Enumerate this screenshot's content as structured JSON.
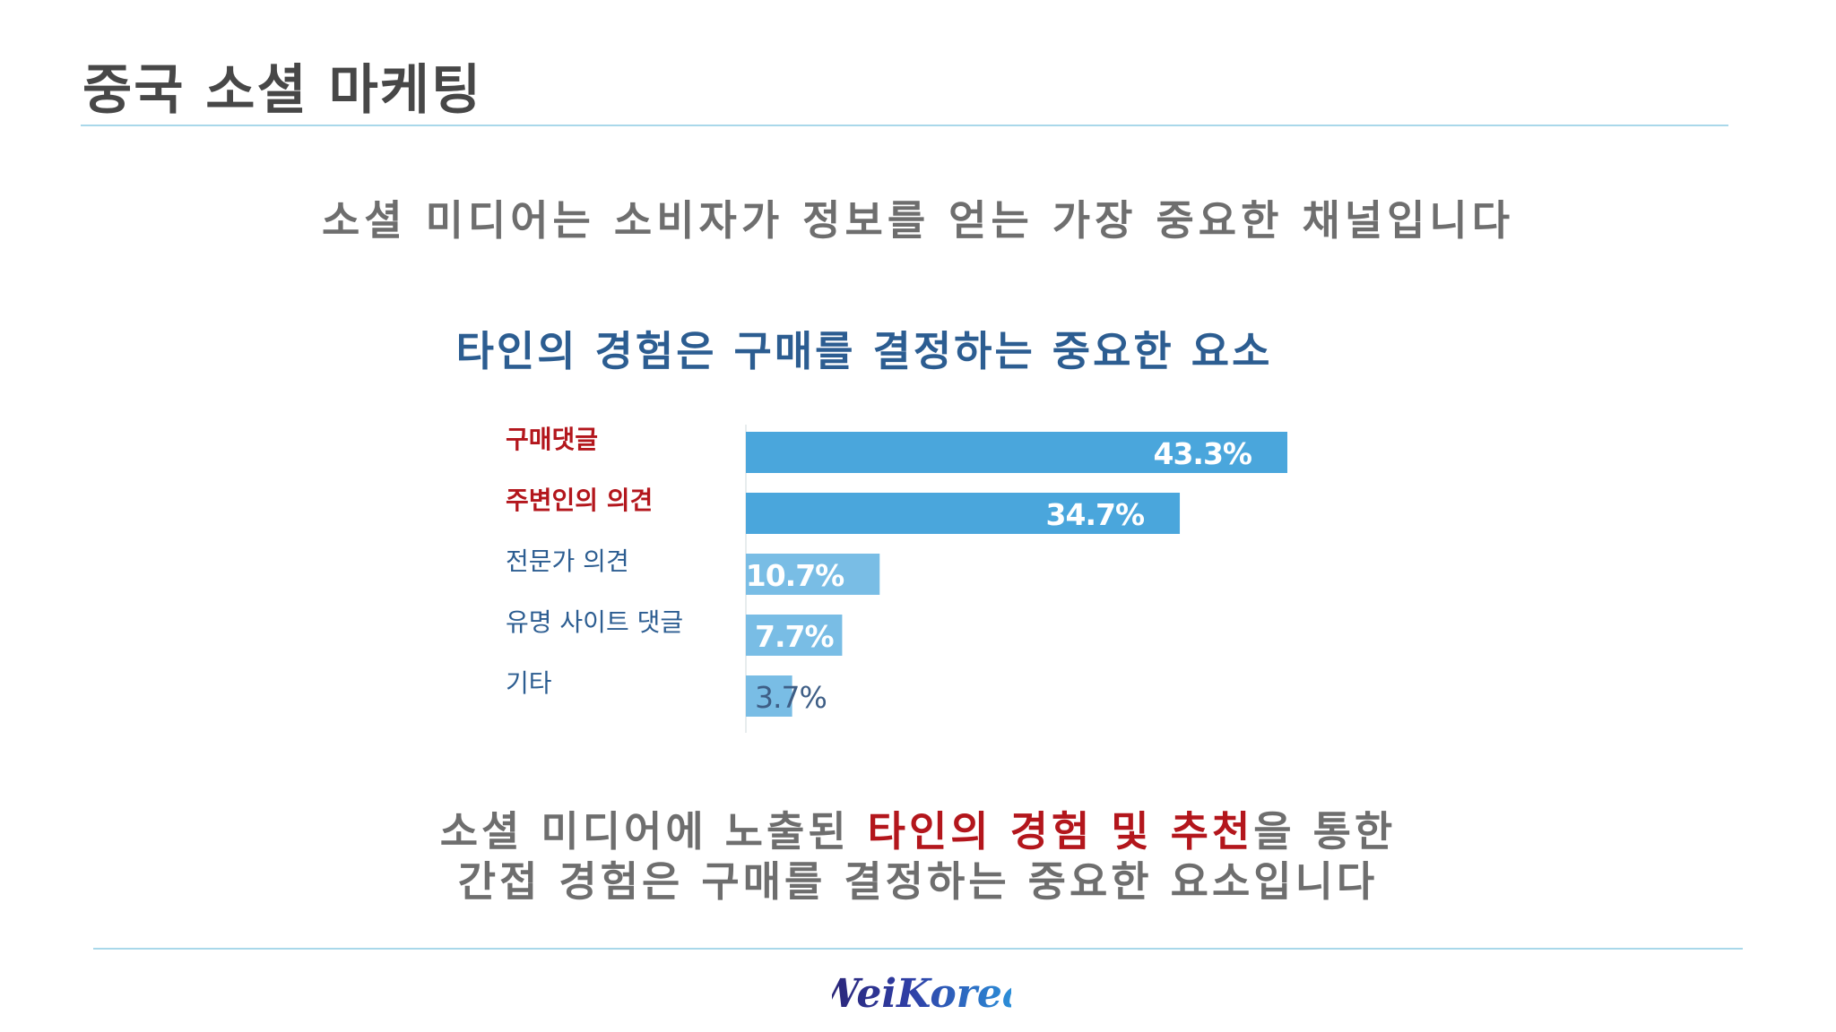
{
  "slide": {
    "title": "중국 소셜 마케팅",
    "subtitle": "소셜 미디어는 소비자가 정보를 얻는 가장 중요한 채널입니다",
    "chart_heading": "타인의 경험은 구매를 결정하는 중요한 요소",
    "conclusion": {
      "line1_pre": "소셜 미디어에 노출된 ",
      "line1_highlight": "타인의 경험 및 추천",
      "line1_post": "을 통한",
      "line2": "간접 경험은 구매를 결정하는 중요한 요소입니다"
    },
    "logo_text": "WeiKorea"
  },
  "colors": {
    "title": "#474747",
    "text_gray": "#6e6e6e",
    "heading_blue": "#2c5d91",
    "highlight_red": "#b3161c",
    "category_red": "#b3161c",
    "category_blue": "#2c5d91",
    "bar_dark": "#4aa6dc",
    "bar_light": "#79bde5",
    "rule": "#a9d8ea"
  },
  "chart_data": {
    "type": "bar",
    "orientation": "horizontal",
    "categories": [
      "구매댓글",
      "주변인의 의견",
      "전문가 의견",
      "유명 사이트 댓글",
      "기타"
    ],
    "values": [
      43.3,
      34.7,
      10.7,
      7.7,
      3.7
    ],
    "data_labels": [
      "43.3%",
      "34.7%",
      "10.7%",
      "7.7%",
      "3.7%"
    ],
    "unit": "%",
    "highlighted_categories": [
      "구매댓글",
      "주변인의 의견"
    ],
    "xlim": [
      0,
      43.3
    ],
    "grid": false,
    "legend": "none"
  }
}
